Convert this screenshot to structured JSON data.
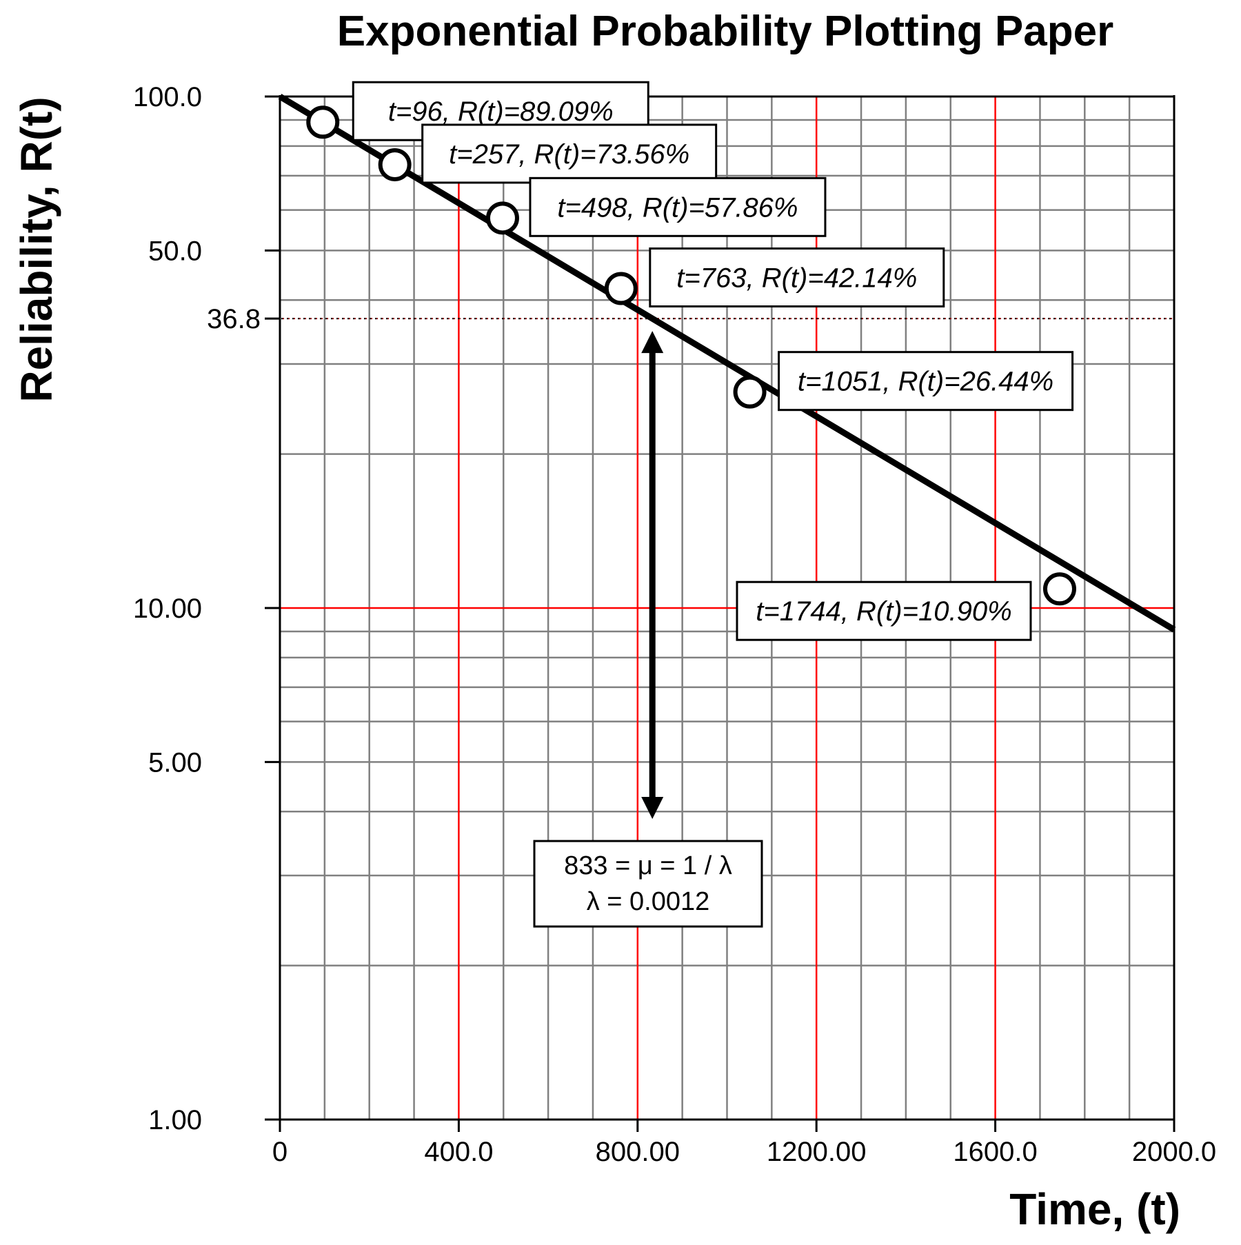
{
  "chart_data": {
    "type": "scatter",
    "title": "Exponential Probability Plotting Paper",
    "xlabel": "Time, (t)",
    "ylabel": "Reliability, R(t)",
    "xlim": [
      0,
      2000
    ],
    "ylim": [
      1,
      100
    ],
    "yscale": "exponential-probability (log reliability)",
    "x_ticks": [
      {
        "value": 0,
        "label": "0"
      },
      {
        "value": 400,
        "label": "400.0"
      },
      {
        "value": 800,
        "label": "800.00"
      },
      {
        "value": 1200,
        "label": "1200.00"
      },
      {
        "value": 1600,
        "label": "1600.0"
      },
      {
        "value": 2000,
        "label": "2000.0"
      }
    ],
    "y_ticks": [
      {
        "value": 100,
        "label": "100.0"
      },
      {
        "value": 50,
        "label": "50.0"
      },
      {
        "value": 36.8,
        "label": "36.8"
      },
      {
        "value": 10,
        "label": "10.00"
      },
      {
        "value": 5,
        "label": "5.00"
      },
      {
        "value": 1,
        "label": "1.00"
      }
    ],
    "grid": true,
    "major_x_gridlines": [
      400,
      800,
      1200,
      1600
    ],
    "major_y_gridlines": [
      10
    ],
    "points": [
      {
        "x": 96,
        "y": 89.09,
        "label": "t=96, R(t)=89.09%"
      },
      {
        "x": 257,
        "y": 73.56,
        "label": "t=257, R(t)=73.56%"
      },
      {
        "x": 498,
        "y": 57.86,
        "label": "t=498, R(t)=57.86%"
      },
      {
        "x": 763,
        "y": 42.14,
        "label": "t=763, R(t)=42.14%"
      },
      {
        "x": 1051,
        "y": 26.44,
        "label": "t=1051, R(t)=26.44%"
      },
      {
        "x": 1744,
        "y": 10.9,
        "label": "t=1744, R(t)=10.90%"
      }
    ],
    "fit_line": {
      "intercept": 100,
      "lambda": 0.0012,
      "x_range": [
        0,
        2000
      ]
    },
    "reference_line_y": 36.8,
    "mean_life_x": 833,
    "note_lines": [
      "833 = μ = 1 / λ",
      "λ = 0.0012"
    ],
    "colors": {
      "major_grid": "#ff0000",
      "minor_grid": "#808080",
      "line": "#000000"
    }
  }
}
